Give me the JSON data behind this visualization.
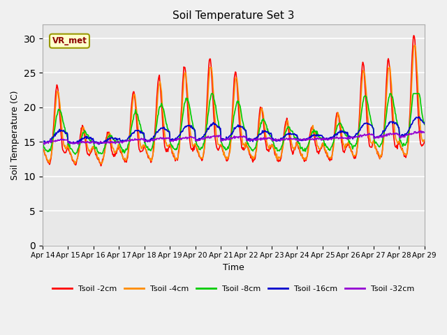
{
  "title": "Soil Temperature Set 3",
  "xlabel": "Time",
  "ylabel": "Soil Temperature (C)",
  "ylim": [
    0,
    32
  ],
  "yticks": [
    0,
    5,
    10,
    15,
    20,
    25,
    30
  ],
  "background_color": "#f0f0f0",
  "plot_bg_color": "#e8e8e8",
  "annotation_text": "VR_met",
  "annotation_box_color": "#ffffcc",
  "annotation_border_color": "#999900",
  "legend_labels": [
    "Tsoil -2cm",
    "Tsoil -4cm",
    "Tsoil -8cm",
    "Tsoil -16cm",
    "Tsoil -32cm"
  ],
  "line_colors": [
    "#FF0000",
    "#FF8C00",
    "#00CC00",
    "#0000CD",
    "#9400D3"
  ],
  "line_widths": [
    1.2,
    1.2,
    1.2,
    1.2,
    1.2
  ],
  "days": [
    "Apr 14",
    "Apr 15",
    "Apr 16",
    "Apr 17",
    "Apr 18",
    "Apr 19",
    "Apr 20",
    "Apr 21",
    "Apr 22",
    "Apr 23",
    "Apr 24",
    "Apr 25",
    "Apr 26",
    "Apr 27",
    "Apr 28",
    "Apr 29"
  ]
}
